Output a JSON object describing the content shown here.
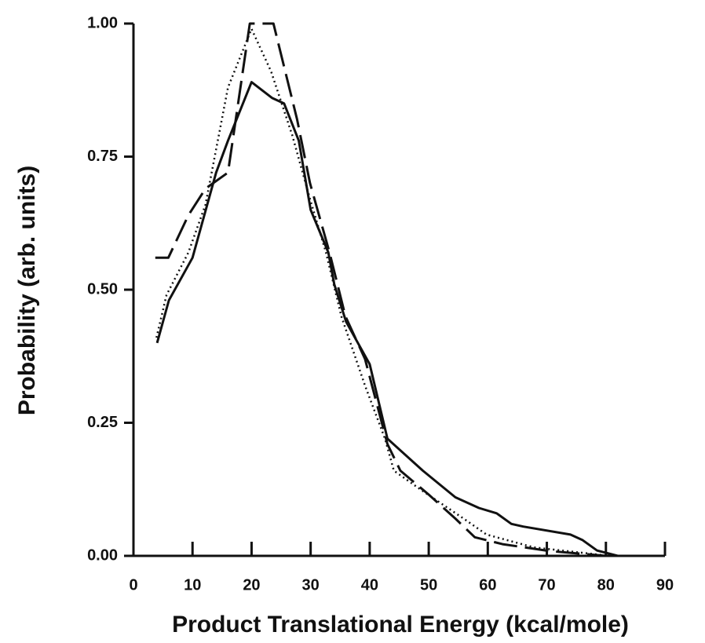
{
  "chart_data": {
    "type": "line",
    "xlabel": "Product Translational Energy (kcal/mole)",
    "ylabel": "Probability (arb. units)",
    "xlim": [
      0,
      90
    ],
    "ylim": [
      0,
      1
    ],
    "xticks": [
      0,
      10,
      20,
      30,
      40,
      50,
      60,
      70,
      80,
      90
    ],
    "yticks": [
      {
        "value": 0,
        "label": "0.00"
      },
      {
        "value": 0.25,
        "label": "0.25"
      },
      {
        "value": 0.5,
        "label": "0.50"
      },
      {
        "value": 0.75,
        "label": "0.75"
      },
      {
        "value": 1,
        "label": "1.00"
      }
    ],
    "series": [
      {
        "color": "#111111",
        "style": "solid",
        "x": [
          4,
          6,
          10,
          14,
          16,
          20,
          23.5,
          25.5,
          28,
          30,
          33,
          34,
          36,
          40,
          43,
          49,
          54.5,
          58.5,
          61.5,
          64,
          66,
          74,
          76,
          78.5,
          82
        ],
        "values": [
          0.4,
          0.48,
          0.56,
          0.72,
          0.78,
          0.89,
          0.86,
          0.85,
          0.78,
          0.65,
          0.57,
          0.51,
          0.44,
          0.36,
          0.22,
          0.16,
          0.11,
          0.09,
          0.08,
          0.06,
          0.055,
          0.04,
          0.03,
          0.01,
          0
        ]
      },
      {
        "color": "#111111",
        "style": "dashed",
        "x": [
          3.7,
          5.9,
          9.3,
          12.2,
          16,
          19.7,
          23.7,
          27.7,
          29.9,
          33.2,
          35.9,
          39.2,
          43,
          45.2,
          50,
          54.5,
          57.8,
          62.5,
          70.5,
          77,
          80
        ],
        "values": [
          0.56,
          0.56,
          0.64,
          0.69,
          0.72,
          1.0,
          1.0,
          0.82,
          0.7,
          0.57,
          0.45,
          0.37,
          0.21,
          0.16,
          0.115,
          0.07,
          0.035,
          0.022,
          0.009,
          0.003,
          0
        ]
      },
      {
        "color": "#111111",
        "style": "dotted",
        "x": [
          3.9,
          5.6,
          9.3,
          12.2,
          16,
          20,
          23.3,
          26.9,
          29.9,
          32.6,
          35.2,
          39.2,
          42.6,
          44.1,
          49.2,
          55.9,
          59.8,
          67.8,
          75.8,
          80.5
        ],
        "values": [
          0.41,
          0.49,
          0.57,
          0.66,
          0.88,
          0.99,
          0.91,
          0.79,
          0.67,
          0.57,
          0.45,
          0.32,
          0.22,
          0.16,
          0.12,
          0.07,
          0.04,
          0.016,
          0.006,
          0
        ]
      }
    ]
  }
}
